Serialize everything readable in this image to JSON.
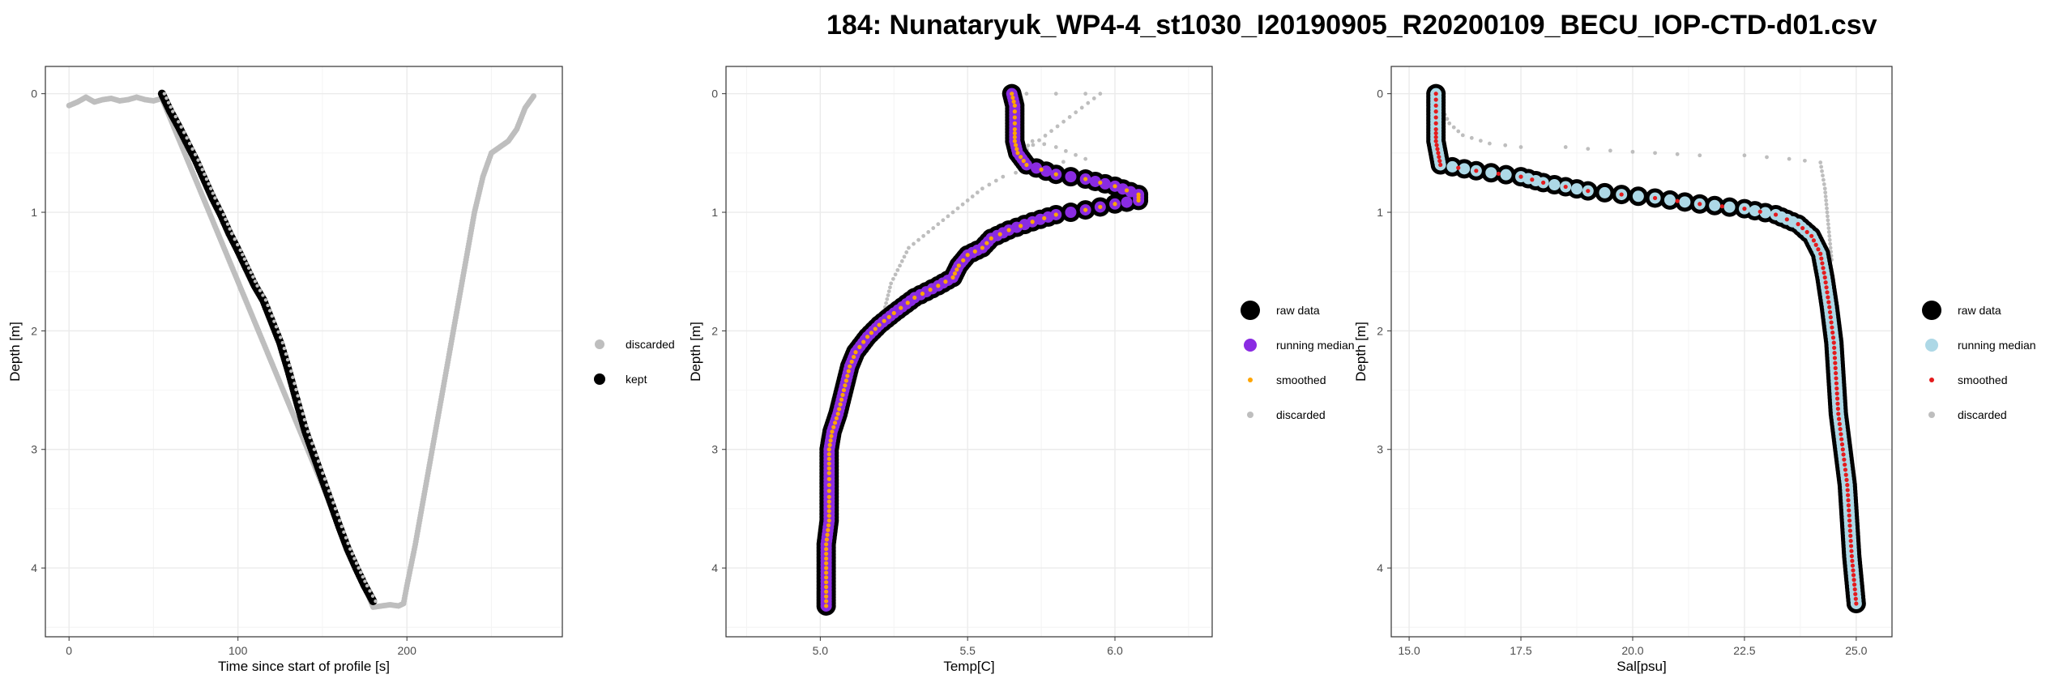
{
  "page_title": "184: Nunataryuk_WP4-4_st1030_I20190905_R20200109_BECU_IOP-CTD-d01.csv",
  "colors": {
    "kept": "#000000",
    "discarded": "#bebebe",
    "raw": "#000000",
    "median_temp": "#8a2be2",
    "median_sal": "#add8e6",
    "smoothed_temp": "#ffa500",
    "smoothed_sal": "#e41a1c",
    "grid": "#ebebeb"
  },
  "chart_data": [
    {
      "type": "scatter",
      "xlabel": "Time since start of profile [s]",
      "ylabel": "Depth [m]",
      "xlim": [
        -14,
        292
      ],
      "ylim": [
        4.58,
        -0.23
      ],
      "y_reversed": true,
      "x_ticks": [
        0,
        100,
        200
      ],
      "y_ticks": [
        0,
        1,
        2,
        3,
        4
      ],
      "grid": true,
      "legend_position": "right",
      "legend": [
        {
          "label": "discarded",
          "role": "discarded"
        },
        {
          "label": "kept",
          "role": "kept"
        }
      ],
      "series": [
        {
          "name": "discarded",
          "points": [
            [
              0,
              0.1
            ],
            [
              5,
              0.07
            ],
            [
              10,
              0.03
            ],
            [
              15,
              0.07
            ],
            [
              20,
              0.05
            ],
            [
              25,
              0.04
            ],
            [
              30,
              0.06
            ],
            [
              35,
              0.05
            ],
            [
              40,
              0.03
            ],
            [
              45,
              0.05
            ],
            [
              50,
              0.06
            ],
            [
              55,
              0.04
            ],
            [
              180,
              4.33
            ],
            [
              185,
              4.32
            ],
            [
              190,
              4.31
            ],
            [
              195,
              4.32
            ],
            [
              198,
              4.3
            ],
            [
              200,
              4.15
            ],
            [
              205,
              3.8
            ],
            [
              210,
              3.4
            ],
            [
              215,
              3.0
            ],
            [
              220,
              2.6
            ],
            [
              225,
              2.2
            ],
            [
              230,
              1.8
            ],
            [
              235,
              1.4
            ],
            [
              240,
              1.0
            ],
            [
              245,
              0.7
            ],
            [
              250,
              0.5
            ],
            [
              255,
              0.45
            ],
            [
              260,
              0.4
            ],
            [
              265,
              0.3
            ],
            [
              270,
              0.12
            ],
            [
              275,
              0.02
            ]
          ]
        },
        {
          "name": "kept",
          "points": [
            [
              55,
              0.0
            ],
            [
              60,
              0.15
            ],
            [
              65,
              0.28
            ],
            [
              70,
              0.42
            ],
            [
              75,
              0.56
            ],
            [
              80,
              0.72
            ],
            [
              85,
              0.88
            ],
            [
              90,
              1.02
            ],
            [
              95,
              1.18
            ],
            [
              100,
              1.32
            ],
            [
              105,
              1.47
            ],
            [
              110,
              1.62
            ],
            [
              115,
              1.74
            ],
            [
              120,
              1.92
            ],
            [
              125,
              2.1
            ],
            [
              130,
              2.34
            ],
            [
              135,
              2.6
            ],
            [
              140,
              2.85
            ],
            [
              145,
              3.05
            ],
            [
              150,
              3.25
            ],
            [
              155,
              3.45
            ],
            [
              160,
              3.65
            ],
            [
              165,
              3.84
            ],
            [
              170,
              4.0
            ],
            [
              175,
              4.15
            ],
            [
              180,
              4.28
            ]
          ]
        }
      ]
    },
    {
      "type": "scatter",
      "xlabel": "Temp[C]",
      "ylabel": "Depth [m]",
      "xlim": [
        4.68,
        6.33
      ],
      "ylim": [
        4.58,
        -0.23
      ],
      "y_reversed": true,
      "x_ticks": [
        5.0,
        5.5,
        6.0
      ],
      "x_tick_labels": [
        "5.0",
        "5.5",
        "6.0"
      ],
      "y_ticks": [
        0,
        1,
        2,
        3,
        4
      ],
      "grid": true,
      "legend_position": "right",
      "legend": [
        {
          "label": "raw data",
          "role": "raw"
        },
        {
          "label": "running median",
          "role": "median"
        },
        {
          "label": "smoothed",
          "role": "smoothed"
        },
        {
          "label": "discarded",
          "role": "discarded"
        }
      ],
      "series": [
        {
          "name": "discarded",
          "points": [
            [
              5.7,
              0.0
            ],
            [
              5.8,
              0.0
            ],
            [
              5.9,
              0.0
            ],
            [
              5.95,
              0.0
            ],
            [
              5.66,
              0.55
            ],
            [
              5.72,
              0.4
            ],
            [
              5.8,
              0.45
            ],
            [
              5.9,
              0.55
            ],
            [
              5.75,
              0.6
            ],
            [
              5.62,
              0.7
            ],
            [
              5.55,
              0.8
            ],
            [
              5.5,
              0.9
            ],
            [
              5.45,
              1.0
            ],
            [
              5.4,
              1.1
            ],
            [
              5.35,
              1.2
            ],
            [
              5.3,
              1.3
            ],
            [
              5.27,
              1.45
            ],
            [
              5.24,
              1.6
            ],
            [
              5.22,
              1.8
            ],
            [
              5.18,
              2.0
            ],
            [
              5.13,
              2.2
            ],
            [
              5.1,
              2.4
            ],
            [
              5.06,
              2.6
            ]
          ]
        },
        {
          "name": "profile",
          "points": [
            [
              5.65,
              0.0
            ],
            [
              5.66,
              0.1
            ],
            [
              5.66,
              0.2
            ],
            [
              5.66,
              0.3
            ],
            [
              5.66,
              0.4
            ],
            [
              5.67,
              0.5
            ],
            [
              5.7,
              0.6
            ],
            [
              5.8,
              0.68
            ],
            [
              5.9,
              0.72
            ],
            [
              6.0,
              0.78
            ],
            [
              6.08,
              0.85
            ],
            [
              6.08,
              0.9
            ],
            [
              6.0,
              0.93
            ],
            [
              5.9,
              0.98
            ],
            [
              5.8,
              1.02
            ],
            [
              5.72,
              1.08
            ],
            [
              5.64,
              1.15
            ],
            [
              5.58,
              1.22
            ],
            [
              5.55,
              1.3
            ],
            [
              5.5,
              1.36
            ],
            [
              5.47,
              1.45
            ],
            [
              5.45,
              1.55
            ],
            [
              5.4,
              1.62
            ],
            [
              5.32,
              1.72
            ],
            [
              5.25,
              1.85
            ],
            [
              5.2,
              1.95
            ],
            [
              5.16,
              2.05
            ],
            [
              5.12,
              2.18
            ],
            [
              5.1,
              2.3
            ],
            [
              5.08,
              2.5
            ],
            [
              5.06,
              2.7
            ],
            [
              5.04,
              2.85
            ],
            [
              5.03,
              3.0
            ],
            [
              5.03,
              3.2
            ],
            [
              5.03,
              3.4
            ],
            [
              5.03,
              3.6
            ],
            [
              5.02,
              3.8
            ],
            [
              5.02,
              4.0
            ],
            [
              5.02,
              4.2
            ],
            [
              5.02,
              4.32
            ]
          ]
        }
      ]
    },
    {
      "type": "scatter",
      "xlabel": "Sal[psu]",
      "ylabel": "Depth [m]",
      "xlim": [
        14.6,
        25.8
      ],
      "ylim": [
        4.58,
        -0.23
      ],
      "y_reversed": true,
      "x_ticks": [
        15.0,
        17.5,
        20.0,
        22.5,
        25.0
      ],
      "x_tick_labels": [
        "15.0",
        "17.5",
        "20.0",
        "22.5",
        "25.0"
      ],
      "y_ticks": [
        0,
        1,
        2,
        3,
        4
      ],
      "grid": true,
      "legend_position": "right",
      "legend": [
        {
          "label": "raw data",
          "role": "raw"
        },
        {
          "label": "running median",
          "role": "median"
        },
        {
          "label": "smoothed",
          "role": "smoothed"
        },
        {
          "label": "discarded",
          "role": "discarded"
        }
      ],
      "series": [
        {
          "name": "discarded",
          "points": [
            [
              15.7,
              0.1
            ],
            [
              15.9,
              0.25
            ],
            [
              16.2,
              0.35
            ],
            [
              16.8,
              0.42
            ],
            [
              17.5,
              0.45
            ],
            [
              18.5,
              0.45
            ],
            [
              19.5,
              0.48
            ],
            [
              20.5,
              0.5
            ],
            [
              21.5,
              0.52
            ],
            [
              22.5,
              0.52
            ],
            [
              23.5,
              0.55
            ],
            [
              24.2,
              0.58
            ],
            [
              24.3,
              0.8
            ],
            [
              24.35,
              1.0
            ],
            [
              24.4,
              1.2
            ],
            [
              24.45,
              1.4
            ]
          ]
        },
        {
          "name": "profile",
          "points": [
            [
              15.6,
              0.0
            ],
            [
              15.6,
              0.1
            ],
            [
              15.6,
              0.2
            ],
            [
              15.6,
              0.3
            ],
            [
              15.6,
              0.4
            ],
            [
              15.65,
              0.5
            ],
            [
              15.7,
              0.6
            ],
            [
              16.5,
              0.65
            ],
            [
              17.5,
              0.7
            ],
            [
              18.0,
              0.75
            ],
            [
              19.0,
              0.82
            ],
            [
              20.5,
              0.88
            ],
            [
              21.5,
              0.93
            ],
            [
              22.5,
              0.97
            ],
            [
              23.2,
              1.02
            ],
            [
              23.7,
              1.1
            ],
            [
              24.0,
              1.2
            ],
            [
              24.2,
              1.35
            ],
            [
              24.3,
              1.55
            ],
            [
              24.4,
              1.8
            ],
            [
              24.5,
              2.1
            ],
            [
              24.55,
              2.4
            ],
            [
              24.6,
              2.7
            ],
            [
              24.7,
              3.0
            ],
            [
              24.8,
              3.3
            ],
            [
              24.85,
              3.6
            ],
            [
              24.9,
              3.9
            ],
            [
              24.95,
              4.1
            ],
            [
              25.0,
              4.3
            ]
          ]
        }
      ]
    }
  ]
}
